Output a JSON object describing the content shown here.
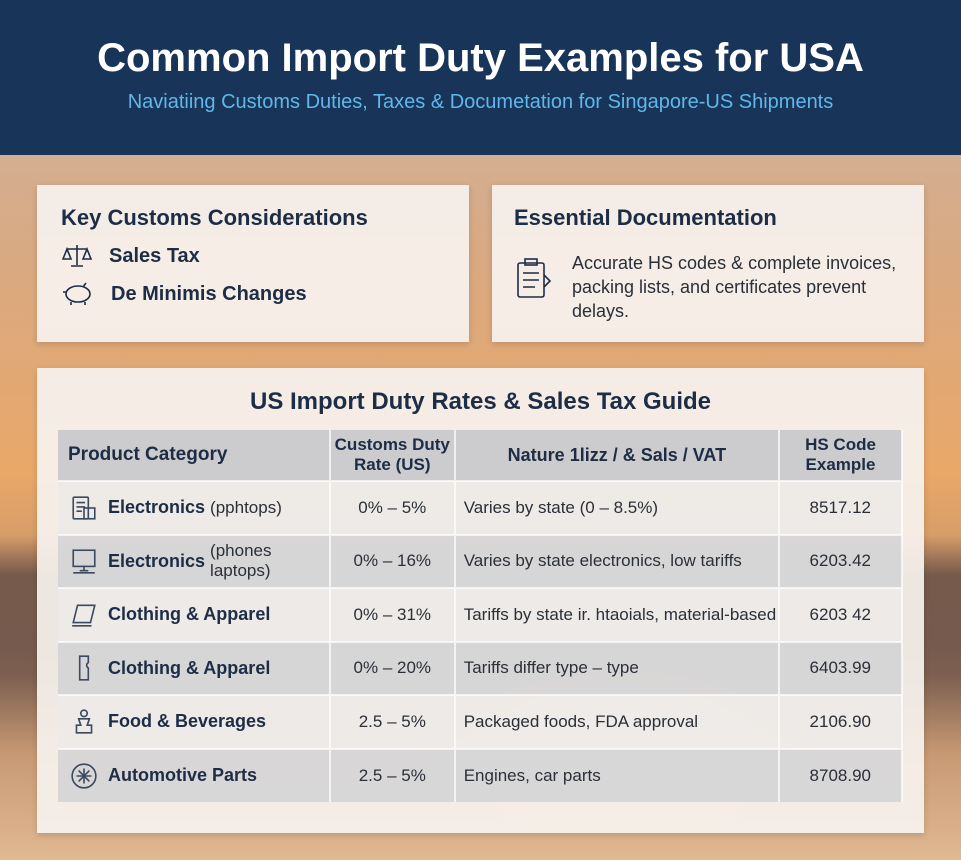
{
  "header": {
    "title": "Common Import Duty Examples for USA",
    "subtitle": "Naviatiing Customs Duties, Taxes & Documetation for Singapore-US Shipments"
  },
  "considerations": {
    "title": "Key Customs Considerations",
    "items": [
      {
        "icon": "scale-icon",
        "label": "Sales Tax"
      },
      {
        "icon": "piggy-bank-icon",
        "label": "De Minimis Changes"
      }
    ]
  },
  "documentation": {
    "title": "Essential Documentation",
    "icon": "clipboard-icon",
    "text": "Accurate HS codes & complete invoices, packing lists, and certificates prevent delays."
  },
  "table": {
    "title": "US Import Duty Rates & Sales Tax Guide",
    "headers": [
      "Product Category",
      "Customs Duty Rate (US)",
      "Nature 1lizz / & Sals / VAT",
      "HS Code Example"
    ],
    "rows": [
      {
        "icon": "document-icon",
        "category": "Electronics",
        "note": "(pphtops)",
        "rate": "0% – 5%",
        "tax": "Varies by state (0 – 8.5%)",
        "hs": "8517.12"
      },
      {
        "icon": "computer-icon",
        "category": "Electronics",
        "note": "(phones laptops)",
        "rate": "0% – 16%",
        "tax": "Varies by state electronics, low tariffs",
        "hs": "6203.42"
      },
      {
        "icon": "laptop-icon",
        "category": "Clothing & Apparel",
        "note": "",
        "rate": "0% – 31%",
        "tax": "Tariffs by state ir. htaoials, material-based",
        "hs": "6203 42"
      },
      {
        "icon": "phone-icon",
        "category": "Clothing & Apparel",
        "note": "",
        "rate": "0% – 20%",
        "tax": "Tariffs differ type – type",
        "hs": "6403.99"
      },
      {
        "icon": "food-icon",
        "category": "Food & Beverages",
        "note": "",
        "rate": "2.5 – 5%",
        "tax": "Packaged foods, FDA approval",
        "hs": "2106.90"
      },
      {
        "icon": "gear-icon",
        "category": "Automotive Parts",
        "note": "",
        "rate": "2.5 – 5%",
        "tax": "Engines, car parts",
        "hs": "8708.90"
      }
    ]
  },
  "colors": {
    "header_bg": "#183559",
    "subtitle": "#5fb7ea",
    "text_dark": "#1d2d45"
  }
}
